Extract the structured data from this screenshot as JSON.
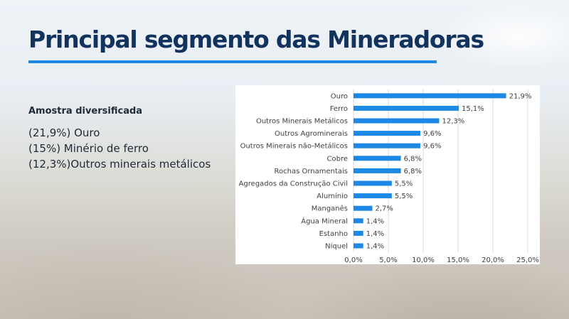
{
  "slide": {
    "title": "Principal segmento das Mineradoras",
    "accent_color": "#1e88e5",
    "title_color": "#12335e"
  },
  "sample": {
    "heading": "Amostra diversificada",
    "items": [
      "(21,9%) Ouro",
      "(15%) Minério de ferro",
      "(12,3%)Outros minerais metálicos"
    ]
  },
  "chart_data": {
    "type": "bar",
    "orientation": "horizontal",
    "categories": [
      "Ouro",
      "Ferro",
      "Outros Minerais Metálicos",
      "Outros Agrominerais",
      "Outros Minerais não-Metálicos",
      "Cobre",
      "Rochas Ornamentais",
      "Agregados da Construção Civil",
      "Alumínio",
      "Manganês",
      "Água Mineral",
      "Estanho",
      "Níquel"
    ],
    "values": [
      21.9,
      15.1,
      12.3,
      9.6,
      9.6,
      6.8,
      6.8,
      5.5,
      5.5,
      2.7,
      1.4,
      1.4,
      1.4
    ],
    "value_labels": [
      "21,9%",
      "15,1%",
      "12,3%",
      "9,6%",
      "9,6%",
      "6,8%",
      "6,8%",
      "5,5%",
      "5,5%",
      "2,7%",
      "1,4%",
      "1,4%",
      "1,4%"
    ],
    "xlim": [
      0,
      25
    ],
    "x_ticks": [
      0,
      5,
      10,
      15,
      20,
      25
    ],
    "x_tick_labels": [
      "0,0%",
      "5,0%",
      "10,0%",
      "15,0%",
      "20,0%",
      "25,0%"
    ],
    "grid": "vertical",
    "bar_color": "#1e88e5"
  }
}
